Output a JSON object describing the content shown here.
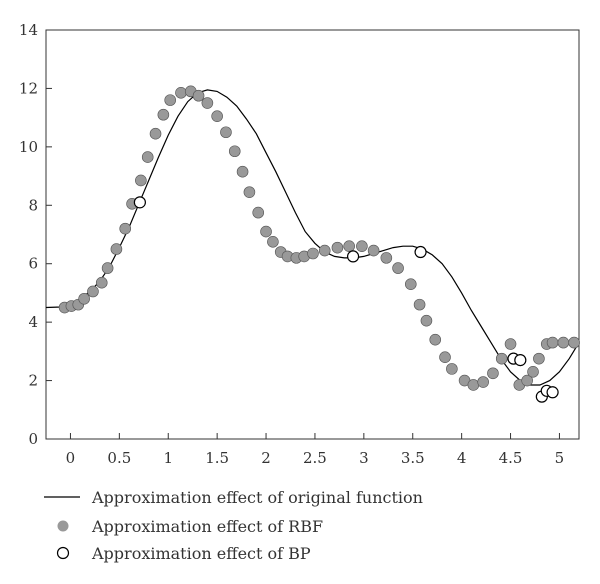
{
  "chart_data": {
    "type": "line",
    "title": "",
    "xlabel": "",
    "ylabel": "",
    "xlim": [
      -0.25,
      5.2
    ],
    "ylim": [
      0,
      14
    ],
    "x_ticks": [
      0,
      0.5,
      1,
      1.5,
      2,
      2.5,
      3,
      3.5,
      4,
      4.5,
      5
    ],
    "x_tick_labels": [
      "0",
      "0.5",
      "1",
      "1.5",
      "2",
      "2.5",
      "3",
      "3.5",
      "4",
      "4.5",
      "5"
    ],
    "y_ticks": [
      0,
      2,
      4,
      6,
      8,
      10,
      12,
      14
    ],
    "y_tick_labels": [
      "0",
      "2",
      "4",
      "6",
      "8",
      "10",
      "12",
      "14"
    ],
    "grid": false,
    "legend_position": "bottom",
    "series": [
      {
        "name": "Approximation effect of original function",
        "style": "line",
        "color": "#000000",
        "x": [
          -0.25,
          -0.1,
          0.0,
          0.1,
          0.2,
          0.3,
          0.4,
          0.5,
          0.6,
          0.7,
          0.8,
          0.9,
          1.0,
          1.1,
          1.2,
          1.3,
          1.4,
          1.5,
          1.6,
          1.7,
          1.8,
          1.9,
          2.0,
          2.1,
          2.2,
          2.3,
          2.4,
          2.5,
          2.6,
          2.7,
          2.8,
          2.9,
          3.0,
          3.1,
          3.2,
          3.3,
          3.4,
          3.5,
          3.6,
          3.7,
          3.8,
          3.9,
          4.0,
          4.1,
          4.2,
          4.3,
          4.4,
          4.5,
          4.6,
          4.7,
          4.8,
          4.9,
          5.0,
          5.1,
          5.2
        ],
        "y": [
          4.5,
          4.52,
          4.6,
          4.8,
          5.05,
          5.4,
          5.9,
          6.55,
          7.25,
          8.05,
          8.85,
          9.65,
          10.4,
          11.05,
          11.55,
          11.85,
          11.95,
          11.9,
          11.7,
          11.4,
          10.95,
          10.45,
          9.8,
          9.15,
          8.45,
          7.75,
          7.1,
          6.7,
          6.4,
          6.25,
          6.2,
          6.2,
          6.25,
          6.35,
          6.45,
          6.55,
          6.6,
          6.6,
          6.5,
          6.3,
          6.0,
          5.55,
          5.0,
          4.4,
          3.85,
          3.3,
          2.75,
          2.3,
          2.0,
          1.85,
          1.85,
          2.0,
          2.3,
          2.75,
          3.3
        ]
      },
      {
        "name": "Approximation effect of RBF",
        "style": "filled-marker",
        "color": "#999999",
        "x": [
          -0.06,
          0.01,
          0.08,
          0.14,
          0.23,
          0.32,
          0.38,
          0.47,
          0.56,
          0.63,
          0.72,
          0.79,
          0.87,
          0.95,
          1.02,
          1.13,
          1.23,
          1.31,
          1.4,
          1.5,
          1.59,
          1.68,
          1.76,
          1.83,
          1.92,
          2.0,
          2.07,
          2.15,
          2.22,
          2.31,
          2.39,
          2.48,
          2.6,
          2.73,
          2.85,
          2.98,
          3.1,
          3.23,
          3.35,
          3.48,
          3.57,
          3.64,
          3.73,
          3.83,
          3.9,
          4.03,
          4.12,
          4.22,
          4.32,
          4.41,
          4.5,
          4.59,
          4.67,
          4.73,
          4.79,
          4.87,
          4.93,
          5.04,
          5.15
        ],
        "y": [
          4.5,
          4.55,
          4.6,
          4.8,
          5.05,
          5.35,
          5.85,
          6.5,
          7.2,
          8.05,
          8.85,
          9.65,
          10.45,
          11.1,
          11.6,
          11.85,
          11.9,
          11.75,
          11.5,
          11.05,
          10.5,
          9.85,
          9.15,
          8.45,
          7.75,
          7.1,
          6.75,
          6.4,
          6.25,
          6.2,
          6.25,
          6.35,
          6.45,
          6.55,
          6.6,
          6.6,
          6.45,
          6.2,
          5.85,
          5.3,
          4.6,
          4.05,
          3.4,
          2.8,
          2.4,
          2.0,
          1.85,
          1.95,
          2.25,
          2.75,
          3.25,
          1.85,
          2.0,
          2.3,
          2.75,
          3.25,
          3.3,
          3.3,
          3.3
        ]
      },
      {
        "name": "Approximation effect of BP",
        "style": "open-marker",
        "color": "#000000",
        "x": [
          0.71,
          2.89,
          3.58,
          4.53,
          4.6,
          4.82,
          4.87,
          4.93
        ],
        "y": [
          8.1,
          6.25,
          6.4,
          2.75,
          2.7,
          1.45,
          1.65,
          1.6
        ]
      }
    ]
  }
}
